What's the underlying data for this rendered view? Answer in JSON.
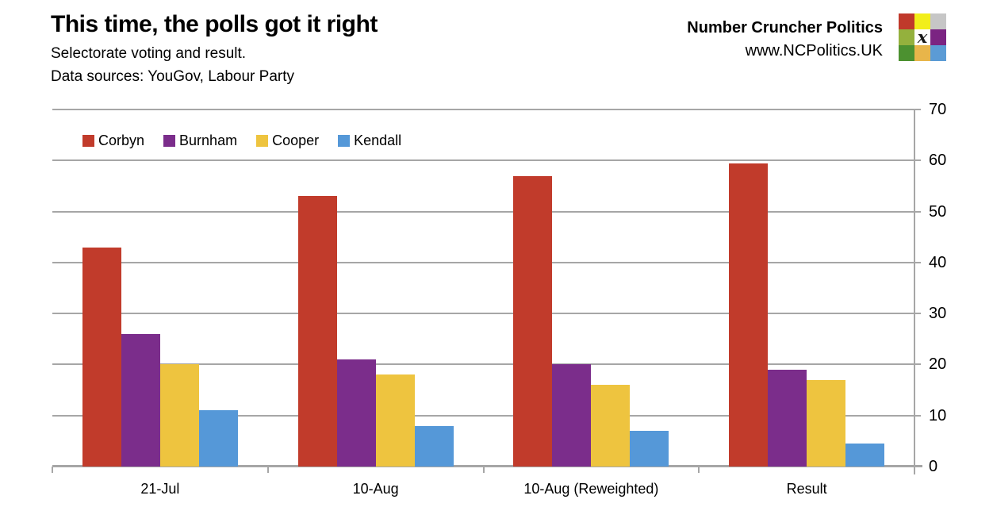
{
  "header": {
    "title": "This time, the polls got it right",
    "subtitle": "Selectorate voting and result.",
    "source_line": "Data sources: YouGov, Labour Party"
  },
  "branding": {
    "name": "Number Cruncher Politics",
    "url": "www.NCPolitics.UK",
    "logo_x_glyph": "x",
    "logo_grid_colors": [
      [
        "#c0392b",
        "#f2ee1a",
        "#c6c6c6"
      ],
      [
        "#94b13d",
        "#ffffff",
        "#7b2482"
      ],
      [
        "#4c9130",
        "#e8b54a",
        "#5b9bd5"
      ]
    ]
  },
  "chart_data": {
    "type": "bar",
    "title": "This time, the polls got it right",
    "subtitle": "Selectorate voting and result.",
    "categories": [
      "21-Jul",
      "10-Aug",
      "10-Aug (Reweighted)",
      "Result"
    ],
    "series": [
      {
        "name": "Corbyn",
        "color": "#c13b2b",
        "values": [
          43,
          53,
          57,
          59.5
        ]
      },
      {
        "name": "Burnham",
        "color": "#7b2d8b",
        "values": [
          26,
          21,
          20,
          19
        ]
      },
      {
        "name": "Cooper",
        "color": "#eec43f",
        "values": [
          20,
          18,
          16,
          17
        ]
      },
      {
        "name": "Kendall",
        "color": "#5598d8",
        "values": [
          11,
          8,
          7,
          4.5
        ]
      }
    ],
    "ylim": [
      0,
      70
    ],
    "yticks": [
      0,
      10,
      20,
      30,
      40,
      50,
      60,
      70
    ],
    "axis_side": "right",
    "grid": true,
    "grid_color": "#a6a6a6",
    "legend_position": "top-left-inside"
  }
}
